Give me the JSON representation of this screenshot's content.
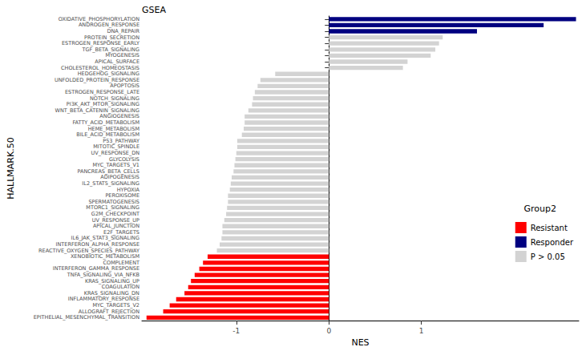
{
  "chart_data": {
    "type": "bar",
    "title": "GSEA",
    "orientation": "horizontal",
    "stacked": true,
    "xlabel": "NES",
    "ylabel": "HALLMARK.50",
    "legend": "right",
    "legend_title": "Group2",
    "grid": false,
    "xlim": [
      -2.02,
      2.7
    ],
    "xticks": [
      -1,
      0,
      1
    ],
    "categories": [
      "OXIDATIVE_PHOSPHORYLATION",
      "ANDROGEN_RESPONSE",
      "DNA_REPAIR",
      "PROTEIN_SECRETION",
      "ESTROGEN_RESPONSE_EARLY",
      "TGF_BETA_SIGNALING",
      "MYOGENESIS",
      "APICAL_SURFACE",
      "CHOLESTEROL_HOMEOSTASIS",
      "HEDGEHOG_SIGNALING",
      "UNFOLDED_PROTEIN_RESPONSE",
      "APOPTOSIS",
      "ESTROGEN_RESPONSE_LATE",
      "NOTCH_SIGNALING",
      "PI3K_AKT_MTOR_SIGNALING",
      "WNT_BETA_CATENIN_SIGNALING",
      "ANGIOGENESIS",
      "FATTY_ACID_METABOLISM",
      "HEME_METABOLISM",
      "BILE_ACID_METABOLISM",
      "P53_PATHWAY",
      "MITOTIC_SPINDLE",
      "UV_RESPONSE_DN",
      "GLYCOLYSIS",
      "MYC_TARGETS_V1",
      "PANCREAS_BETA_CELLS",
      "ADIPOGENESIS",
      "IL2_STAT5_SIGNALING",
      "HYPOXIA",
      "PEROXISOME",
      "SPERMATOGENESIS",
      "MTORC1_SIGNALING",
      "G2M_CHECKPOINT",
      "UV_RESPONSE_UP",
      "APICAL_JUNCTION",
      "E2F_TARGETS",
      "IL6_JAK_STAT3_SIGNALING",
      "INTERFERON_ALPHA_RESPONSE",
      "REACTIVE_OXYGEN_SPECIES_PATHWAY",
      "XENOBIOTIC_METABOLISM",
      "COMPLEMENT",
      "INTERFERON_GAMMA_RESPONSE",
      "TNFA_SIGNALING_VIA_NFKB",
      "KRAS_SIGNALING_UP",
      "COAGULATION",
      "KRAS_SIGNALING_DN",
      "INFLAMMATORY_RESPONSE",
      "MYC_TARGETS_V2",
      "ALLOGRAFT_REJECTION",
      "EPITHELIAL_MESENCHYMAL_TRANSITION"
    ],
    "series": [
      {
        "name": "Resistant",
        "color": "#ff0000",
        "values": [
          null,
          null,
          null,
          null,
          null,
          null,
          null,
          null,
          null,
          null,
          null,
          null,
          null,
          null,
          null,
          null,
          null,
          null,
          null,
          null,
          null,
          null,
          null,
          null,
          null,
          null,
          null,
          null,
          null,
          null,
          null,
          null,
          null,
          null,
          null,
          null,
          null,
          null,
          null,
          -1.31,
          -1.36,
          -1.4,
          -1.45,
          -1.49,
          -1.52,
          -1.56,
          -1.65,
          -1.72,
          -1.79,
          -1.97
        ]
      },
      {
        "name": "Responder",
        "color": "#000080",
        "values": [
          2.67,
          2.32,
          1.6,
          null,
          null,
          null,
          null,
          null,
          null,
          null,
          null,
          null,
          null,
          null,
          null,
          null,
          null,
          null,
          null,
          null,
          null,
          null,
          null,
          null,
          null,
          null,
          null,
          null,
          null,
          null,
          null,
          null,
          null,
          null,
          null,
          null,
          null,
          null,
          null,
          null,
          null,
          null,
          null,
          null,
          null,
          null,
          null,
          null,
          null,
          null
        ]
      },
      {
        "name": "P > 0.05",
        "color": "#d3d3d3",
        "values": [
          null,
          null,
          null,
          1.23,
          1.19,
          1.15,
          1.1,
          0.85,
          0.8,
          -0.58,
          -0.74,
          -0.77,
          -0.8,
          -0.82,
          -0.83,
          -0.87,
          -0.91,
          -0.91,
          -0.92,
          -0.94,
          -0.99,
          -0.99,
          -1.0,
          -1.01,
          -1.02,
          -1.03,
          -1.05,
          -1.06,
          -1.07,
          -1.09,
          -1.09,
          -1.1,
          -1.11,
          -1.13,
          -1.15,
          -1.15,
          -1.16,
          -1.18,
          -1.21,
          null,
          null,
          null,
          null,
          null,
          null,
          null,
          null,
          null,
          null,
          null
        ]
      }
    ]
  }
}
